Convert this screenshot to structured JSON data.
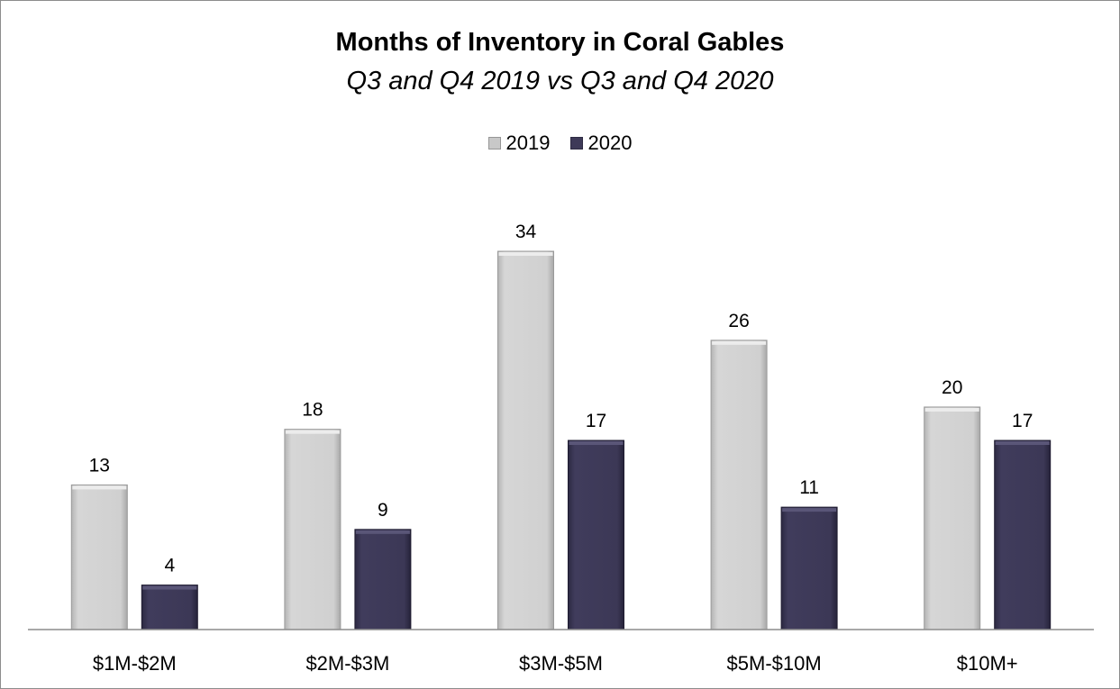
{
  "chart_data": {
    "type": "bar",
    "title": "Months of Inventory in Coral Gables",
    "subtitle": "Q3 and Q4 2019 vs Q3 and Q4 2020",
    "xlabel": "",
    "ylabel": "",
    "categories": [
      "$1M-$2M",
      "$2M-$3M",
      "$3M-$5M",
      "$5M-$10M",
      "$10M+"
    ],
    "series": [
      {
        "name": "2019",
        "values": [
          13,
          18,
          34,
          26,
          20
        ],
        "color": "#c8c8c8"
      },
      {
        "name": "2020",
        "values": [
          4,
          9,
          17,
          11,
          17
        ],
        "color": "#3e3a58"
      }
    ],
    "ylim": [
      0,
      34
    ],
    "grid": false,
    "legend_position": "top-center",
    "data_labels": true
  }
}
